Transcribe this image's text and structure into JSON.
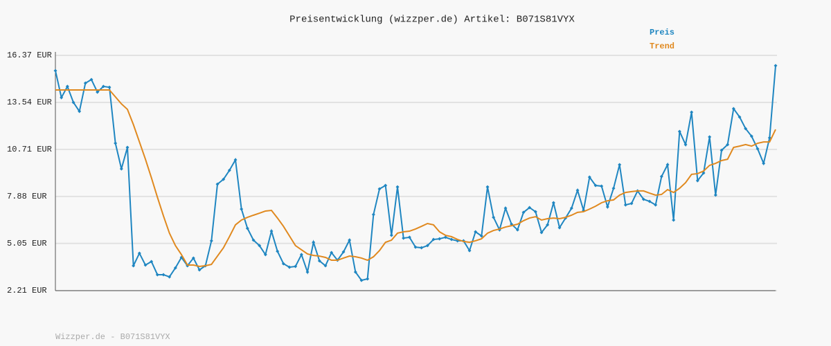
{
  "chart_data": {
    "type": "line",
    "title": "Preisentwicklung (wizzper.de) Artikel: B071S81VYX",
    "footer": "Wizzper.de - B071S81VYX",
    "ylim": [
      2.21,
      16.37
    ],
    "yticks": [
      {
        "value": 2.21,
        "label": "2.21 EUR"
      },
      {
        "value": 5.05,
        "label": "5.05 EUR"
      },
      {
        "value": 7.88,
        "label": "7.88 EUR"
      },
      {
        "value": 10.71,
        "label": "10.71 EUR"
      },
      {
        "value": 13.54,
        "label": "13.54 EUR"
      },
      {
        "value": 16.37,
        "label": "16.37 EUR"
      }
    ],
    "grid": true,
    "legend": "top-right",
    "series": [
      {
        "name": "Preis",
        "color": "#1f86c1",
        "markers": true,
        "values": [
          15.45,
          13.83,
          14.5,
          13.54,
          13.0,
          14.7,
          14.91,
          14.16,
          14.5,
          14.45,
          11.08,
          9.54,
          10.83,
          3.71,
          4.46,
          3.75,
          3.96,
          3.17,
          3.17,
          3.04,
          3.58,
          4.21,
          3.71,
          4.17,
          3.46,
          3.71,
          5.21,
          8.62,
          8.91,
          9.45,
          10.08,
          7.12,
          5.96,
          5.25,
          4.92,
          4.38,
          5.79,
          4.58,
          3.83,
          3.62,
          3.67,
          4.38,
          3.33,
          5.12,
          4.0,
          3.71,
          4.5,
          4.04,
          4.54,
          5.25,
          3.33,
          2.83,
          2.92,
          6.79,
          8.33,
          8.54,
          5.54,
          8.45,
          5.37,
          5.42,
          4.83,
          4.79,
          4.92,
          5.29,
          5.33,
          5.42,
          5.29,
          5.21,
          5.21,
          4.62,
          5.75,
          5.5,
          8.45,
          6.62,
          5.87,
          7.17,
          6.21,
          5.87,
          6.92,
          7.21,
          6.96,
          5.71,
          6.17,
          7.5,
          6.0,
          6.58,
          7.17,
          8.25,
          7.04,
          9.04,
          8.54,
          8.5,
          7.25,
          8.37,
          9.79,
          7.37,
          7.46,
          8.21,
          7.71,
          7.58,
          7.37,
          9.08,
          9.79,
          6.46,
          11.79,
          11.0,
          12.95,
          8.83,
          9.29,
          11.46,
          7.96,
          10.66,
          11.0,
          13.16,
          12.66,
          11.96,
          11.5,
          10.75,
          9.87,
          11.41,
          15.75
        ]
      },
      {
        "name": "Trend",
        "color": "#e0891f",
        "markers": false,
        "values": [
          14.29,
          14.29,
          14.29,
          14.29,
          14.29,
          14.29,
          14.29,
          14.29,
          14.29,
          14.29,
          13.87,
          13.45,
          13.12,
          12.2,
          11.16,
          10.12,
          9.0,
          7.83,
          6.71,
          5.67,
          4.92,
          4.38,
          3.75,
          3.75,
          3.67,
          3.71,
          3.79,
          4.29,
          4.79,
          5.46,
          6.17,
          6.46,
          6.62,
          6.75,
          6.87,
          7.0,
          7.04,
          6.58,
          6.08,
          5.5,
          4.92,
          4.67,
          4.42,
          4.33,
          4.29,
          4.21,
          4.04,
          4.04,
          4.17,
          4.29,
          4.25,
          4.17,
          4.04,
          4.25,
          4.62,
          5.12,
          5.25,
          5.67,
          5.75,
          5.79,
          5.92,
          6.08,
          6.25,
          6.17,
          5.75,
          5.54,
          5.46,
          5.29,
          5.17,
          5.12,
          5.21,
          5.33,
          5.67,
          5.83,
          5.92,
          6.04,
          6.12,
          6.21,
          6.42,
          6.58,
          6.66,
          6.46,
          6.54,
          6.58,
          6.54,
          6.62,
          6.75,
          6.92,
          6.96,
          7.12,
          7.29,
          7.5,
          7.62,
          7.67,
          7.96,
          8.12,
          8.17,
          8.21,
          8.21,
          8.08,
          7.96,
          8.0,
          8.29,
          8.12,
          8.37,
          8.71,
          9.21,
          9.25,
          9.41,
          9.75,
          9.87,
          10.04,
          10.12,
          10.83,
          10.91,
          11.0,
          10.91,
          11.08,
          11.16,
          11.16,
          11.91
        ]
      }
    ]
  }
}
